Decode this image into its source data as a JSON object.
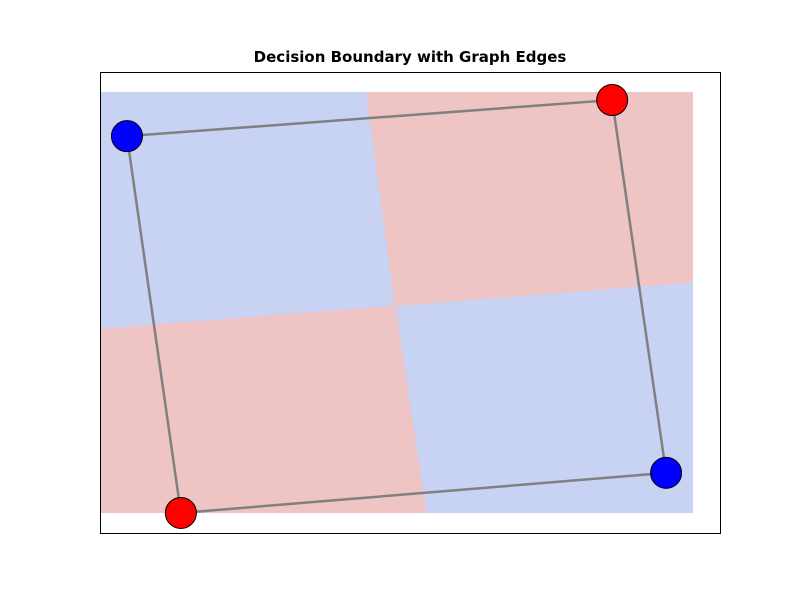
{
  "chart_data": {
    "type": "scatter",
    "title": "Decision Boundary with Graph Edges",
    "xlabel": "",
    "ylabel": "",
    "axes_visible": false,
    "grid": false,
    "legend": "none",
    "xlim": [
      -0.1,
      1.05
    ],
    "ylim": [
      -0.1,
      1.05
    ],
    "region_xlim": [
      -0.1,
      1.0
    ],
    "region_ylim": [
      -0.05,
      1.0
    ],
    "class_colors": {
      "0": "#0000ff",
      "1": "#ff0000"
    },
    "region_colors": {
      "0": "#c8d2f2",
      "1": "#efc4c4"
    },
    "edge_color": "#808080",
    "points": [
      {
        "x": -0.05,
        "y": 0.89,
        "class": 0
      },
      {
        "x": 0.85,
        "y": 0.98,
        "class": 1
      },
      {
        "x": 0.95,
        "y": 0.05,
        "class": 0
      },
      {
        "x": 0.05,
        "y": -0.05,
        "class": 1
      }
    ],
    "edges": [
      [
        0,
        1
      ],
      [
        1,
        2
      ],
      [
        2,
        3
      ],
      [
        3,
        0
      ]
    ]
  }
}
